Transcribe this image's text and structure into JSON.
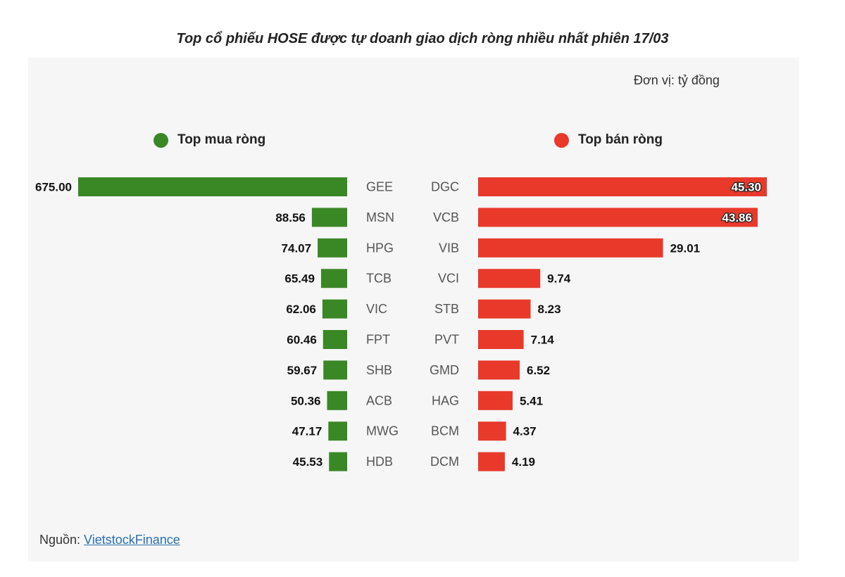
{
  "title": "Top cổ phiếu HOSE được tự doanh giao dịch ròng nhiều nhất phiên 17/03",
  "unit_label": "Đơn vị: tỷ đồng",
  "source": {
    "prefix": "Nguồn: ",
    "link_text": "VietstockFinance"
  },
  "colors": {
    "buy": "#3a8726",
    "sell": "#e8392b",
    "panel": "#f6f6f6"
  },
  "chart_data": [
    {
      "type": "bar",
      "orientation": "horizontal",
      "direction": "leftward",
      "legend": "Top mua ròng",
      "categories": [
        "GEE",
        "MSN",
        "HPG",
        "TCB",
        "VIC",
        "FPT",
        "SHB",
        "ACB",
        "MWG",
        "HDB"
      ],
      "values": [
        675.0,
        88.56,
        74.07,
        65.49,
        62.06,
        60.46,
        59.67,
        50.36,
        47.17,
        45.53
      ],
      "labels": [
        "675.00",
        "88.56",
        "74.07",
        "65.49",
        "62.06",
        "60.46",
        "59.67",
        "50.36",
        "47.17",
        "45.53"
      ]
    },
    {
      "type": "bar",
      "orientation": "horizontal",
      "direction": "rightward",
      "legend": "Top bán ròng",
      "categories": [
        "DGC",
        "VCB",
        "VIB",
        "VCI",
        "STB",
        "PVT",
        "GMD",
        "HAG",
        "BCM",
        "DCM"
      ],
      "values": [
        45.3,
        43.86,
        29.01,
        9.74,
        8.23,
        7.14,
        6.52,
        5.41,
        4.37,
        4.19
      ],
      "labels": [
        "45.30",
        "43.86",
        "29.01",
        "9.74",
        "8.23",
        "7.14",
        "6.52",
        "5.41",
        "4.37",
        "4.19"
      ]
    }
  ]
}
